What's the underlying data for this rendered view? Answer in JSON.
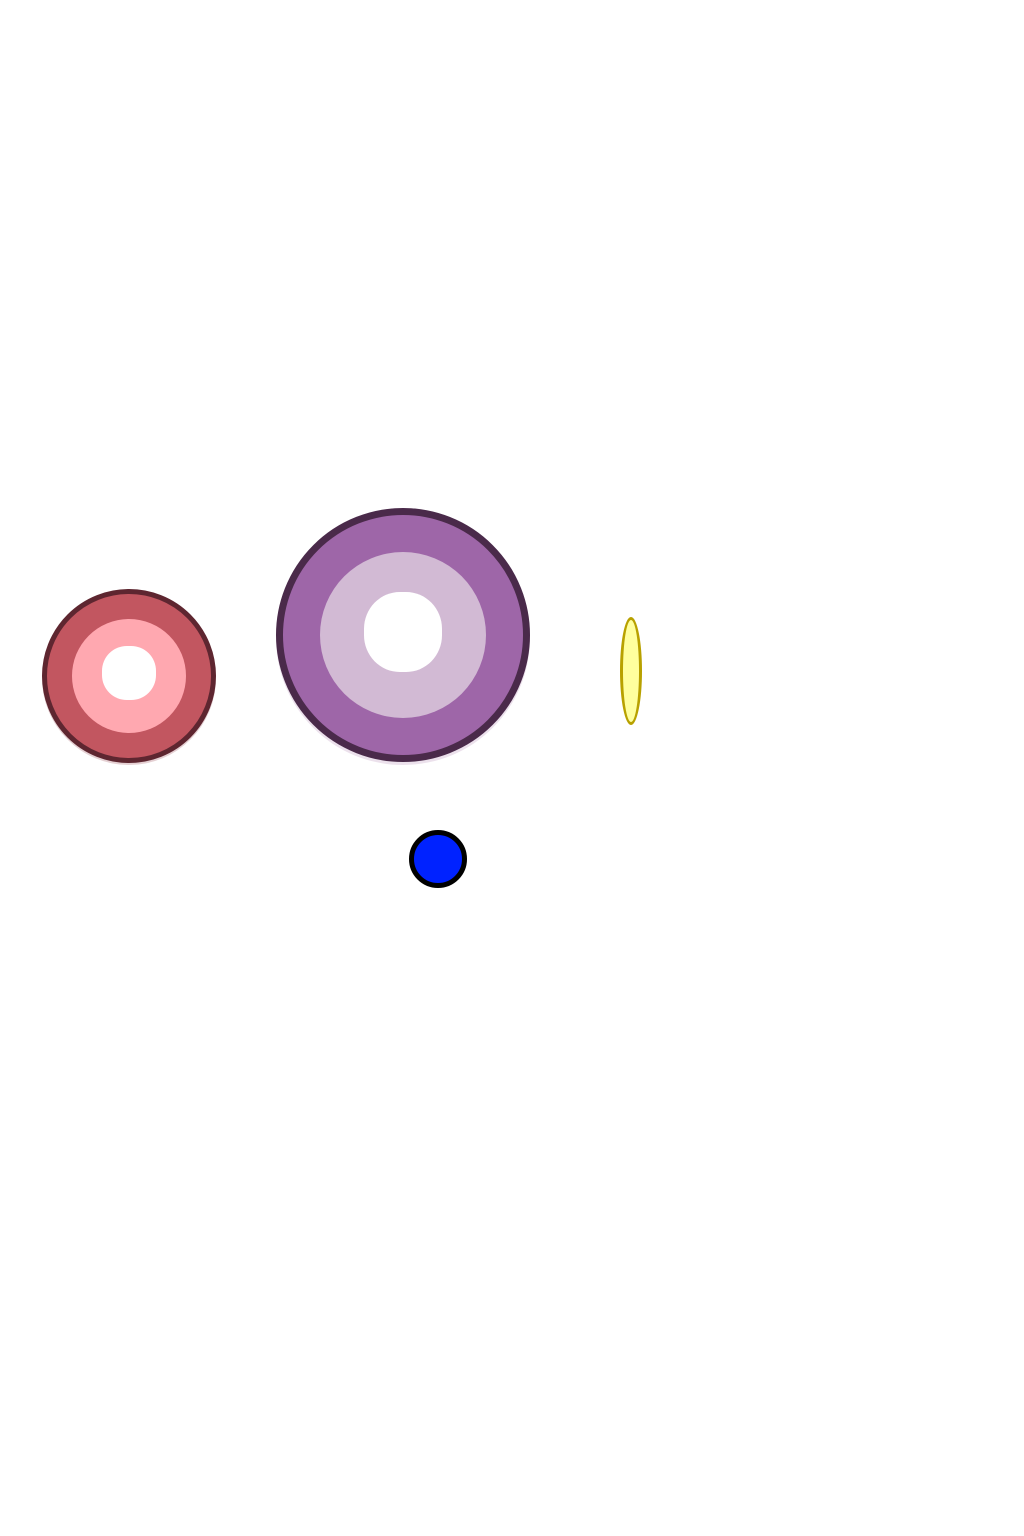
{
  "scene": {
    "background_color": "#ffffff",
    "objects": [
      {
        "name": "red-ring",
        "outer_color": "#c25660",
        "inner_color": "#ffa8b0",
        "rim_color": "#5e2630",
        "hole_color": "#ffffff"
      },
      {
        "name": "purple-ring",
        "outer_color": "#9e66a8",
        "inner_color": "#d2bad4",
        "rim_color": "#4a2a4a",
        "hole_color": "#ffffff"
      },
      {
        "name": "yellow-disc",
        "fill_color": "#ffff9e",
        "rim_color": "#b8a100"
      },
      {
        "name": "blue-ball",
        "fill_color": "#0022ff",
        "rim_color": "#000000"
      }
    ]
  }
}
